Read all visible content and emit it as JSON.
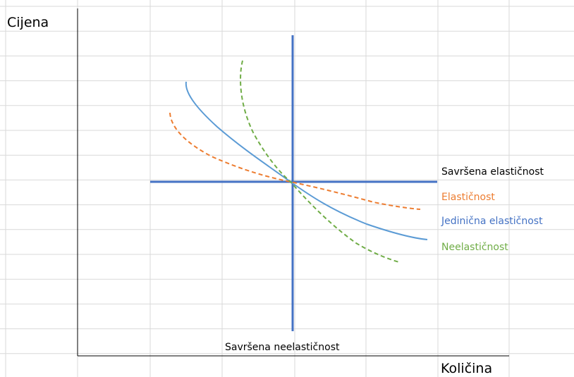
{
  "chart_data": {
    "type": "line",
    "title": "",
    "ylabel": "Cijena",
    "xlabel": "Količina",
    "grid": true,
    "series": [
      {
        "name": "Savršena elastičnost",
        "color": "#4472c4",
        "style": "solid"
      },
      {
        "name": "Savršena neelastičnost",
        "color": "#4472c4",
        "style": "solid"
      },
      {
        "name": "Elastičnost",
        "color": "#ed7d31",
        "style": "dashed"
      },
      {
        "name": "Jedinična elastičnost",
        "color": "#5b9bd5",
        "style": "solid"
      },
      {
        "name": "Neelastičnost",
        "color": "#70ad47",
        "style": "dashed"
      }
    ],
    "annotations": {
      "savrsena_elasticnost": {
        "text": "Savršena elastičnost",
        "color": "#000000"
      },
      "elasticnost": {
        "text": "Elastičnost",
        "color": "#ed7d31"
      },
      "jedinicna": {
        "text": "Jedinična elastičnost",
        "color": "#4472c4"
      },
      "neelasticnost": {
        "text": "Neelastičnost",
        "color": "#70ad47"
      },
      "savrsena_neelasticnost": {
        "text": "Savršena neelastičnost",
        "color": "#000000"
      }
    }
  }
}
